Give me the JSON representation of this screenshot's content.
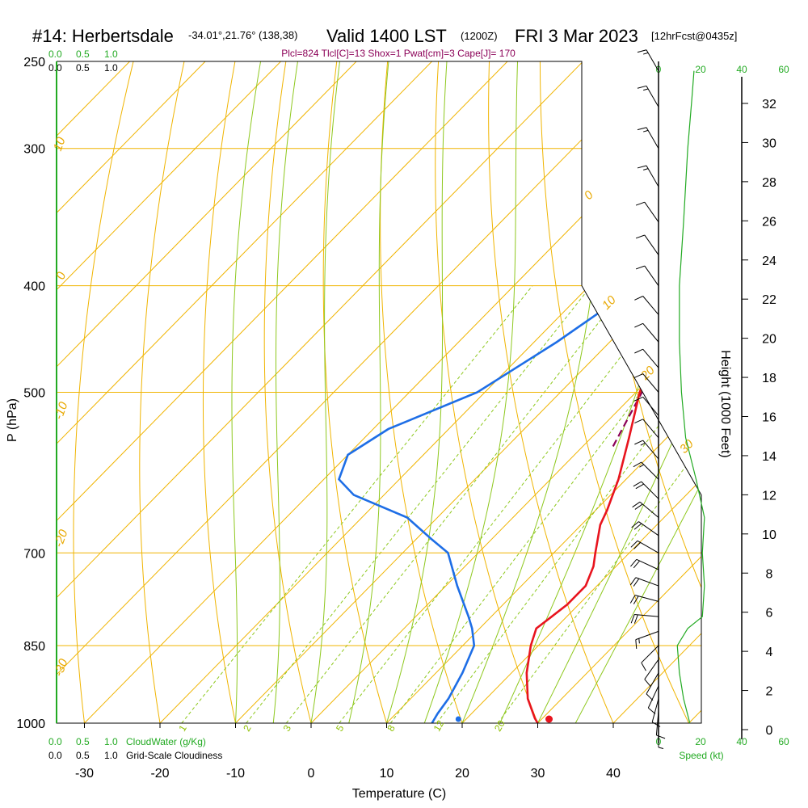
{
  "header": {
    "station": "#14: Herbertsdale",
    "coords": "-34.01°,21.76° (138,38)",
    "valid": "Valid 1400 LST",
    "zulu": "(1200Z)",
    "date": "FRI 3 Mar 2023",
    "forecast": "[12hrFcst@0435z]",
    "params": "Plcl=824 Tlcl[C]=13 Shox=1 Pwat[cm]=3 Cape[J]= 170"
  },
  "legend": {
    "cloudwater_top_ticks": [
      "0.0",
      "0.5",
      "1.0"
    ],
    "cloudiness_top_ticks": [
      "0.0",
      "0.5",
      "1.0"
    ],
    "cloudwater_bottom_ticks": [
      "0.0",
      "0.5",
      "1.0"
    ],
    "cloudiness_bottom_ticks": [
      "0.0",
      "0.5",
      "1.0"
    ],
    "cloudwater_label": "CloudWater (g/Kg)",
    "cloudiness_label": "Grid-Scale Cloudiness",
    "speed_ticks": [
      "0",
      "20",
      "40",
      "60"
    ],
    "speed_label": "Speed (kt)"
  },
  "colors": {
    "isobar": "#f0b400",
    "dry_adiabat": "#f0b400",
    "moist_adiabat": "#8ec81e",
    "mixing_ratio": "#8ec81e",
    "temperature": "#e8141e",
    "dewpoint": "#1e6ee6",
    "parcel": "#8b0057",
    "wind_speed": "#22aa22"
  },
  "chart_data": {
    "type": "line",
    "subtype": "skew-T log-P sounding",
    "xlabel": "Temperature (C)",
    "ylabel": "P (hPa)",
    "y2label": "Height (1000 Feet)",
    "x_ticks": [
      -30,
      -20,
      -10,
      0,
      10,
      20,
      30,
      40
    ],
    "pressure_ticks": [
      250,
      300,
      400,
      500,
      700,
      850,
      1000
    ],
    "height_ticks": [
      0,
      2,
      4,
      6,
      8,
      10,
      12,
      14,
      16,
      18,
      20,
      22,
      24,
      26,
      28,
      30,
      32
    ],
    "xlim": [
      -35,
      45
    ],
    "ylim_hpa": [
      1000,
      250
    ],
    "isotherm_labels": [
      "10",
      "0",
      "-10",
      "-20",
      "-30",
      "0",
      "10",
      "20",
      "30"
    ],
    "mixing_ratio_labels": [
      "1",
      "2",
      "3",
      "5",
      "8",
      "12",
      "20"
    ],
    "series": [
      {
        "name": "Temperature",
        "points": [
          [
            1000,
            30
          ],
          [
            990,
            29
          ],
          [
            950,
            25.5
          ],
          [
            900,
            22
          ],
          [
            850,
            19
          ],
          [
            820,
            17.5
          ],
          [
            800,
            18
          ],
          [
            780,
            18.5
          ],
          [
            750,
            18.5
          ],
          [
            720,
            17
          ],
          [
            700,
            15.5
          ],
          [
            660,
            12.5
          ],
          [
            640,
            11.5
          ],
          [
            600,
            9
          ],
          [
            550,
            5
          ],
          [
            500,
            0.5
          ],
          [
            450,
            -3.5
          ],
          [
            400,
            -8
          ],
          [
            370,
            -11.5
          ],
          [
            340,
            -15.5
          ],
          [
            320,
            -18
          ],
          [
            300,
            -20
          ],
          [
            280,
            -23
          ],
          [
            260,
            -26.5
          ]
        ]
      },
      {
        "name": "Dewpoint",
        "points": [
          [
            1000,
            16
          ],
          [
            980,
            15.5
          ],
          [
            950,
            15
          ],
          [
            900,
            13.5
          ],
          [
            850,
            11.5
          ],
          [
            820,
            9
          ],
          [
            800,
            7
          ],
          [
            750,
            1.5
          ],
          [
            700,
            -4
          ],
          [
            680,
            -8
          ],
          [
            650,
            -14
          ],
          [
            620,
            -24
          ],
          [
            600,
            -28
          ],
          [
            570,
            -30
          ],
          [
            540,
            -28
          ],
          [
            500,
            -21
          ],
          [
            450,
            -17
          ],
          [
            420,
            -15
          ],
          [
            400,
            -16
          ],
          [
            350,
            -20
          ],
          [
            320,
            -24
          ],
          [
            300,
            -28
          ],
          [
            270,
            -33.5
          ],
          [
            255,
            -37.5
          ]
        ]
      },
      {
        "name": "Parcel",
        "points": [
          [
            560,
            4
          ],
          [
            500,
            0.8
          ],
          [
            450,
            -2.5
          ],
          [
            400,
            -7
          ],
          [
            350,
            -12.5
          ],
          [
            320,
            -16
          ]
        ]
      },
      {
        "name": "Wind speed",
        "points": [
          [
            1000,
            15
          ],
          [
            950,
            12
          ],
          [
            900,
            10
          ],
          [
            850,
            9
          ],
          [
            820,
            14
          ],
          [
            800,
            21
          ],
          [
            750,
            22
          ],
          [
            700,
            21
          ],
          [
            650,
            22
          ],
          [
            600,
            18
          ],
          [
            550,
            13
          ],
          [
            500,
            11
          ],
          [
            450,
            10
          ],
          [
            400,
            10
          ],
          [
            350,
            12
          ],
          [
            300,
            14
          ],
          [
            270,
            16
          ],
          [
            255,
            17
          ]
        ]
      }
    ],
    "surface_temperature": 31.5,
    "surface_dewpoint": 19.5
  },
  "winds": [
    {
      "p": 1000,
      "dir": 180,
      "spd": 5
    },
    {
      "p": 975,
      "dir": 185,
      "spd": 10
    },
    {
      "p": 950,
      "dir": 195,
      "spd": 10
    },
    {
      "p": 925,
      "dir": 205,
      "spd": 10
    },
    {
      "p": 900,
      "dir": 210,
      "spd": 10
    },
    {
      "p": 875,
      "dir": 215,
      "spd": 10
    },
    {
      "p": 850,
      "dir": 225,
      "spd": 10
    },
    {
      "p": 825,
      "dir": 250,
      "spd": 15
    },
    {
      "p": 800,
      "dir": 275,
      "spd": 20
    },
    {
      "p": 775,
      "dir": 285,
      "spd": 20
    },
    {
      "p": 750,
      "dir": 290,
      "spd": 20
    },
    {
      "p": 725,
      "dir": 295,
      "spd": 20
    },
    {
      "p": 700,
      "dir": 300,
      "spd": 20
    },
    {
      "p": 675,
      "dir": 305,
      "spd": 20
    },
    {
      "p": 650,
      "dir": 310,
      "spd": 20
    },
    {
      "p": 625,
      "dir": 315,
      "spd": 20
    },
    {
      "p": 600,
      "dir": 315,
      "spd": 15
    },
    {
      "p": 575,
      "dir": 320,
      "spd": 15
    },
    {
      "p": 550,
      "dir": 320,
      "spd": 10
    },
    {
      "p": 525,
      "dir": 320,
      "spd": 10
    },
    {
      "p": 500,
      "dir": 320,
      "spd": 10
    },
    {
      "p": 475,
      "dir": 320,
      "spd": 10
    },
    {
      "p": 450,
      "dir": 320,
      "spd": 10
    },
    {
      "p": 425,
      "dir": 320,
      "spd": 10
    },
    {
      "p": 400,
      "dir": 325,
      "spd": 10
    },
    {
      "p": 375,
      "dir": 325,
      "spd": 10
    },
    {
      "p": 350,
      "dir": 325,
      "spd": 10
    },
    {
      "p": 325,
      "dir": 330,
      "spd": 15
    },
    {
      "p": 300,
      "dir": 330,
      "spd": 15
    },
    {
      "p": 275,
      "dir": 330,
      "spd": 15
    },
    {
      "p": 255,
      "dir": 330,
      "spd": 15
    }
  ]
}
